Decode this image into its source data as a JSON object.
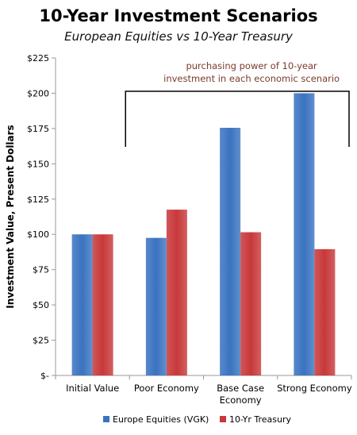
{
  "chart_data": {
    "type": "bar",
    "title": "10-Year Investment Scenarios",
    "subtitle": "European Equities vs 10-Year Treasury",
    "ylabel": "Investment Value, Present Dollars",
    "xlabel": "",
    "ylim": [
      0,
      225
    ],
    "yticks": [
      0,
      25,
      50,
      75,
      100,
      125,
      150,
      175,
      200,
      225
    ],
    "ytick_labels": [
      "$-",
      "$25",
      "$50",
      "$75",
      "$100",
      "$125",
      "$150",
      "$175",
      "$200",
      "$225"
    ],
    "categories": [
      [
        "Initial Value"
      ],
      [
        "Poor Economy"
      ],
      [
        "Base Case",
        "Economy"
      ],
      [
        "Strong Economy"
      ]
    ],
    "series": [
      {
        "name": "Europe Equities (VGK)",
        "color": "#3A73C0",
        "values": [
          100,
          97.5,
          175.5,
          200
        ]
      },
      {
        "name": "10-Yr Treasury",
        "color": "#C8383A",
        "values": [
          100,
          117.5,
          101.5,
          89.5
        ]
      }
    ],
    "annotation": {
      "text_lines": [
        "purchasing power of 10-year",
        "investment in each economic scenario"
      ],
      "color": "#7B3B2B",
      "spans_categories": [
        1,
        3
      ]
    },
    "legend": {
      "placement": "bottom"
    },
    "grid": false
  }
}
